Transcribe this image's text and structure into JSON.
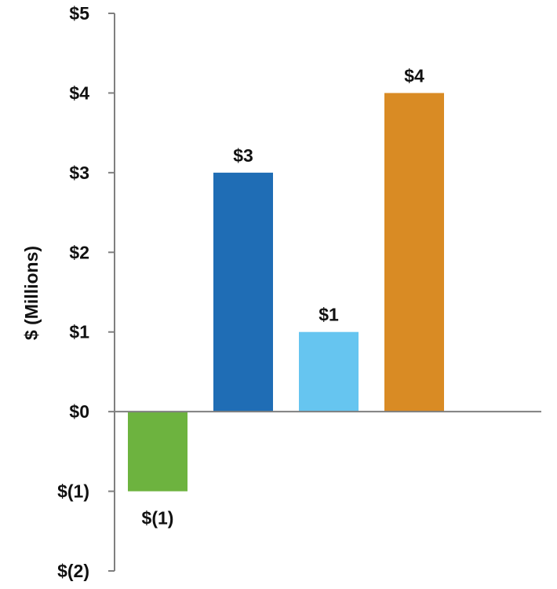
{
  "chart_data": {
    "type": "bar",
    "title": "",
    "xlabel": "",
    "ylabel": "$ (Millions)",
    "ylim": [
      -2,
      5
    ],
    "grid": false,
    "legend": "none",
    "y_ticks": [
      {
        "value": 5,
        "label": "$5"
      },
      {
        "value": 4,
        "label": "$4"
      },
      {
        "value": 3,
        "label": "$3"
      },
      {
        "value": 2,
        "label": "$2"
      },
      {
        "value": 1,
        "label": "$1"
      },
      {
        "value": 0,
        "label": "$0"
      },
      {
        "value": -1,
        "label": "$(1)"
      },
      {
        "value": -2,
        "label": "$(2)"
      }
    ],
    "bars": [
      {
        "value": -1,
        "label": "$(1)",
        "color": "#6db33f"
      },
      {
        "value": 3,
        "label": "$3",
        "color": "#1f6db5"
      },
      {
        "value": 1,
        "label": "$1",
        "color": "#66c5f0"
      },
      {
        "value": 4,
        "label": "$4",
        "color": "#d98b24"
      }
    ],
    "colors": {
      "axis": "#7f7f7f",
      "text": "#111111"
    }
  }
}
